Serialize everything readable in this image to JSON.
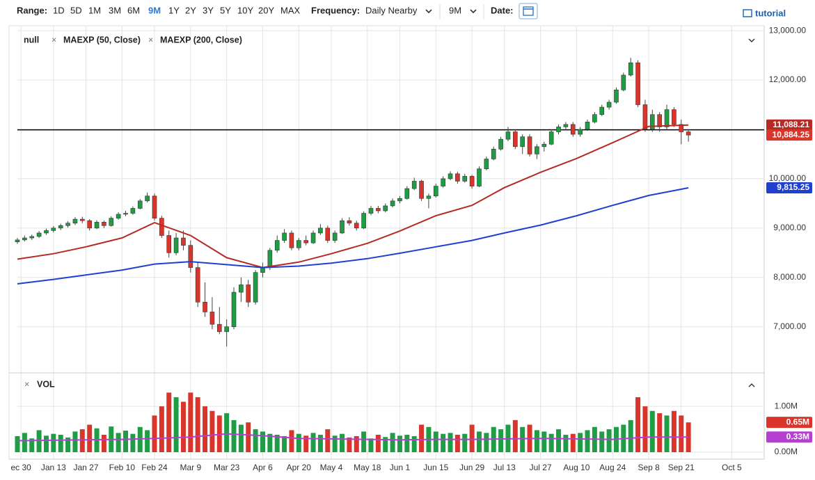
{
  "toolbar": {
    "range_label": "Range:",
    "ranges": [
      "1D",
      "5D",
      "1M",
      "3M",
      "6M",
      "9M",
      "1Y",
      "2Y",
      "3Y",
      "5Y",
      "10Y",
      "20Y",
      "MAX"
    ],
    "active_range": "9M",
    "frequency_label": "Frequency:",
    "frequency": "Daily Nearby",
    "period": "9M",
    "date_label": "Date:",
    "tutorial": "tutorial"
  },
  "chart_data": {
    "type": "candlestick",
    "x": [
      0,
      2,
      4,
      6,
      8,
      10,
      12,
      14,
      16,
      18,
      20,
      22,
      24,
      26,
      28,
      30,
      32,
      34,
      36,
      38,
      40,
      42,
      44,
      46,
      48,
      50,
      52,
      54,
      56,
      58,
      60,
      62,
      64,
      66,
      68,
      70,
      72,
      74,
      76,
      78,
      80,
      82,
      84,
      86,
      88,
      90,
      92,
      94,
      96,
      98,
      100,
      102,
      104,
      106,
      108,
      110,
      112,
      114,
      116,
      118,
      120,
      122,
      124,
      126,
      128,
      130,
      132,
      134,
      136,
      138,
      140,
      142,
      144,
      146,
      148,
      150,
      152,
      154,
      156,
      158,
      160,
      162,
      164,
      166,
      168,
      170,
      172,
      174,
      176,
      178,
      180,
      182,
      184,
      186
    ],
    "candles": {
      "name": "null",
      "up_color": "#1f9d45",
      "down_color": "#d9352a",
      "ohlc": [
        [
          8720,
          8800,
          8680,
          8760
        ],
        [
          8760,
          8850,
          8730,
          8800
        ],
        [
          8800,
          8870,
          8760,
          8830
        ],
        [
          8830,
          8940,
          8800,
          8900
        ],
        [
          8900,
          8990,
          8860,
          8950
        ],
        [
          8950,
          9040,
          8910,
          9000
        ],
        [
          9000,
          9090,
          8960,
          9050
        ],
        [
          9050,
          9140,
          9010,
          9100
        ],
        [
          9100,
          9220,
          9060,
          9180
        ],
        [
          9180,
          9230,
          9100,
          9150
        ],
        [
          9150,
          9180,
          8950,
          9000
        ],
        [
          9000,
          9160,
          8980,
          9120
        ],
        [
          9120,
          9150,
          9000,
          9050
        ],
        [
          9050,
          9240,
          9030,
          9200
        ],
        [
          9200,
          9320,
          9170,
          9280
        ],
        [
          9280,
          9350,
          9240,
          9300
        ],
        [
          9300,
          9440,
          9270,
          9400
        ],
        [
          9400,
          9590,
          9380,
          9550
        ],
        [
          9550,
          9720,
          9520,
          9650
        ],
        [
          9650,
          9700,
          9150,
          9200
        ],
        [
          9200,
          9250,
          8800,
          8850
        ],
        [
          8850,
          8950,
          8400,
          8500
        ],
        [
          8500,
          8900,
          8450,
          8800
        ],
        [
          8800,
          8950,
          8550,
          8650
        ],
        [
          8650,
          8750,
          8100,
          8200
        ],
        [
          8200,
          8300,
          7400,
          7500
        ],
        [
          7500,
          7900,
          7200,
          7300
        ],
        [
          7300,
          7600,
          6950,
          7050
        ],
        [
          7050,
          7400,
          6850,
          6900
        ],
        [
          6900,
          7150,
          6600,
          7000
        ],
        [
          7000,
          7800,
          6950,
          7700
        ],
        [
          7700,
          8000,
          7500,
          7850
        ],
        [
          7850,
          7950,
          7400,
          7500
        ],
        [
          7500,
          8150,
          7450,
          8100
        ],
        [
          8100,
          8300,
          8000,
          8200
        ],
        [
          8200,
          8600,
          8150,
          8550
        ],
        [
          8550,
          8850,
          8500,
          8750
        ],
        [
          8750,
          8980,
          8700,
          8900
        ],
        [
          8900,
          8950,
          8550,
          8600
        ],
        [
          8600,
          8800,
          8550,
          8750
        ],
        [
          8750,
          8850,
          8650,
          8700
        ],
        [
          8700,
          8950,
          8680,
          8900
        ],
        [
          8900,
          9080,
          8860,
          9000
        ],
        [
          9000,
          9050,
          8700,
          8750
        ],
        [
          8750,
          8950,
          8700,
          8900
        ],
        [
          8900,
          9200,
          8880,
          9150
        ],
        [
          9150,
          9220,
          9050,
          9100
        ],
        [
          9100,
          9150,
          8950,
          9000
        ],
        [
          9000,
          9340,
          8980,
          9300
        ],
        [
          9300,
          9450,
          9260,
          9400
        ],
        [
          9400,
          9450,
          9300,
          9350
        ],
        [
          9350,
          9500,
          9320,
          9450
        ],
        [
          9450,
          9600,
          9420,
          9550
        ],
        [
          9550,
          9650,
          9500,
          9600
        ],
        [
          9600,
          9850,
          9580,
          9800
        ],
        [
          9800,
          10020,
          9770,
          9950
        ],
        [
          9950,
          9980,
          9550,
          9600
        ],
        [
          9600,
          9700,
          9400,
          9650
        ],
        [
          9650,
          9900,
          9620,
          9850
        ],
        [
          9850,
          10050,
          9820,
          10000
        ],
        [
          10000,
          10150,
          9970,
          10100
        ],
        [
          10100,
          10140,
          9900,
          9950
        ],
        [
          9950,
          10100,
          9920,
          10050
        ],
        [
          10050,
          10080,
          9800,
          9850
        ],
        [
          9850,
          10250,
          9830,
          10200
        ],
        [
          10200,
          10450,
          10170,
          10400
        ],
        [
          10400,
          10650,
          10370,
          10600
        ],
        [
          10600,
          10850,
          10570,
          10800
        ],
        [
          10800,
          11050,
          10760,
          10950
        ],
        [
          10950,
          11000,
          10600,
          10650
        ],
        [
          10650,
          10900,
          10500,
          10850
        ],
        [
          10850,
          10900,
          10450,
          10500
        ],
        [
          10500,
          10700,
          10400,
          10650
        ],
        [
          10650,
          10750,
          10550,
          10700
        ],
        [
          10700,
          11000,
          10680,
          10950
        ],
        [
          10950,
          11100,
          10900,
          11050
        ],
        [
          11050,
          11150,
          10980,
          11100
        ],
        [
          11100,
          11150,
          10850,
          10900
        ],
        [
          10900,
          11050,
          10850,
          11000
        ],
        [
          11000,
          11200,
          10970,
          11150
        ],
        [
          11150,
          11350,
          11120,
          11300
        ],
        [
          11300,
          11500,
          11270,
          11450
        ],
        [
          11450,
          11600,
          11400,
          11550
        ],
        [
          11550,
          11850,
          11520,
          11800
        ],
        [
          11800,
          12150,
          11770,
          12100
        ],
        [
          12100,
          12450,
          12070,
          12350
        ],
        [
          12350,
          12400,
          11450,
          11500
        ],
        [
          11500,
          11600,
          10950,
          11000
        ],
        [
          11000,
          11400,
          10950,
          11300
        ],
        [
          11300,
          11350,
          10950,
          11050
        ],
        [
          11050,
          11500,
          11000,
          11400
        ],
        [
          11400,
          11450,
          11050,
          11100
        ],
        [
          11100,
          11200,
          10700,
          10950
        ],
        [
          10950,
          11000,
          10750,
          10884.25
        ]
      ],
      "last_label": "10,884.25"
    },
    "overlays": [
      {
        "name": "MAEXP (50, Close)",
        "color": "#b52a24",
        "x": [
          0,
          10,
          19,
          29,
          38,
          48,
          58,
          68,
          78,
          87,
          97,
          106,
          116,
          126,
          135,
          145,
          155,
          165,
          175,
          186
        ],
        "values": [
          8370,
          8480,
          8620,
          8800,
          9110,
          8850,
          8400,
          8200,
          8310,
          8480,
          8690,
          8940,
          9250,
          9460,
          9820,
          10130,
          10410,
          10730,
          11060,
          11088.21
        ],
        "last_label": "11,088.21"
      },
      {
        "name": "MAEXP (200, Close)",
        "color": "#1f3fd1",
        "x": [
          0,
          10,
          19,
          29,
          38,
          48,
          58,
          68,
          78,
          87,
          97,
          106,
          116,
          126,
          135,
          145,
          155,
          165,
          175,
          186
        ],
        "values": [
          7870,
          7960,
          8050,
          8150,
          8270,
          8320,
          8260,
          8200,
          8230,
          8290,
          8380,
          8490,
          8620,
          8750,
          8900,
          9060,
          9250,
          9460,
          9660,
          9815.25
        ],
        "last_label": "9,815.25"
      }
    ],
    "hline": 10990,
    "xlim": [
      0,
      207
    ],
    "xticks": [
      {
        "value": 1,
        "label": "ec 30"
      },
      {
        "value": 10,
        "label": "Jan 13"
      },
      {
        "value": 19,
        "label": "Jan 27"
      },
      {
        "value": 29,
        "label": "Feb 10"
      },
      {
        "value": 38,
        "label": "Feb 24"
      },
      {
        "value": 48,
        "label": "Mar 9"
      },
      {
        "value": 58,
        "label": "Mar 23"
      },
      {
        "value": 68,
        "label": "Apr 6"
      },
      {
        "value": 78,
        "label": "Apr 20"
      },
      {
        "value": 87,
        "label": "May 4"
      },
      {
        "value": 97,
        "label": "May 18"
      },
      {
        "value": 106,
        "label": "Jun 1"
      },
      {
        "value": 116,
        "label": "Jun 15"
      },
      {
        "value": 126,
        "label": "Jun 29"
      },
      {
        "value": 135,
        "label": "Jul 13"
      },
      {
        "value": 145,
        "label": "Jul 27"
      },
      {
        "value": 155,
        "label": "Aug 10"
      },
      {
        "value": 165,
        "label": "Aug 24"
      },
      {
        "value": 175,
        "label": "Sep 8"
      },
      {
        "value": 184,
        "label": "Sep 21"
      },
      {
        "value": 198,
        "label": "Oct 5"
      }
    ],
    "ylim": [
      6080,
      13100
    ],
    "yticks": [
      {
        "value": 7000,
        "label": "7,000.00"
      },
      {
        "value": 8000,
        "label": "8,000.00"
      },
      {
        "value": 9000,
        "label": "9,000.00"
      },
      {
        "value": 10000,
        "label": "10,000.00"
      },
      {
        "value": 11000,
        "label": "11,000.00"
      },
      {
        "value": 12000,
        "label": "12,000.00"
      },
      {
        "value": 13000,
        "label": "13,000.00"
      }
    ],
    "grid": true,
    "volume": {
      "name": "VOL",
      "values": [
        350000,
        420000,
        300000,
        480000,
        360000,
        400000,
        380000,
        320000,
        450000,
        500000,
        600000,
        520000,
        380000,
        560000,
        420000,
        470000,
        400000,
        550000,
        480000,
        800000,
        1000000,
        1300000,
        1200000,
        1100000,
        1300000,
        1200000,
        1000000,
        900000,
        800000,
        850000,
        700000,
        600000,
        650000,
        500000,
        450000,
        400000,
        380000,
        350000,
        480000,
        400000,
        360000,
        420000,
        380000,
        500000,
        360000,
        400000,
        320000,
        350000,
        450000,
        300000,
        380000,
        330000,
        420000,
        360000,
        380000,
        350000,
        600000,
        550000,
        450000,
        400000,
        420000,
        380000,
        400000,
        600000,
        450000,
        420000,
        550000,
        500000,
        600000,
        700000,
        550000,
        600000,
        480000,
        450000,
        400000,
        500000,
        380000,
        400000,
        420000,
        480000,
        550000,
        450000,
        500000,
        550000,
        600000,
        700000,
        1200000,
        1000000,
        900000,
        850000,
        800000,
        900000,
        800000,
        650000
      ],
      "last_label": "0.65M",
      "ylim": [
        0,
        1700000
      ],
      "yticks": [
        {
          "value": 0,
          "label": "0.00M"
        },
        {
          "value": 1000000,
          "label": "1.00M"
        }
      ],
      "ma": {
        "color": "#b43fd0",
        "x": [
          0,
          10,
          19,
          29,
          38,
          48,
          58,
          68,
          78,
          87,
          97,
          106,
          116,
          126,
          135,
          145,
          155,
          165,
          175,
          186
        ],
        "values": [
          250000,
          260000,
          270000,
          280000,
          300000,
          330000,
          400000,
          360000,
          300000,
          290000,
          280000,
          270000,
          280000,
          280000,
          290000,
          300000,
          290000,
          280000,
          330000,
          330000
        ],
        "last_label": "0.33M"
      }
    }
  }
}
